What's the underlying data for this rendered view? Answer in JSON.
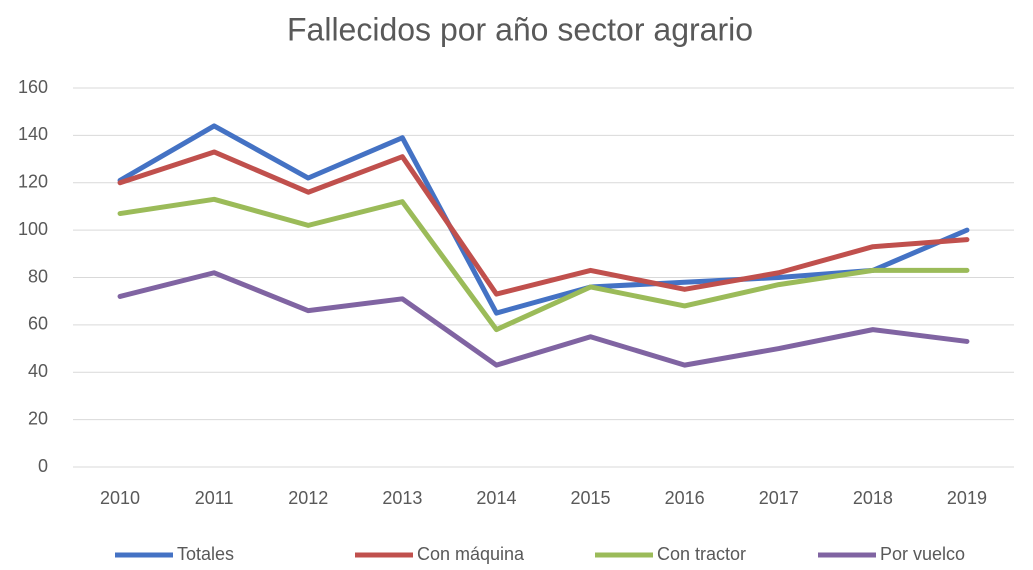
{
  "chart_data": {
    "type": "line",
    "title": "Fallecidos por año sector agrario",
    "categories": [
      "2010",
      "2011",
      "2012",
      "2013",
      "2014",
      "2015",
      "2016",
      "2017",
      "2018",
      "2019"
    ],
    "series": [
      {
        "name": "Totales",
        "color": "#4472c4",
        "values": [
          121,
          144,
          122,
          139,
          65,
          76,
          78,
          80,
          83,
          100
        ]
      },
      {
        "name": "Con máquina",
        "color": "#c0504d",
        "values": [
          120,
          133,
          116,
          131,
          73,
          83,
          75,
          82,
          93,
          96
        ]
      },
      {
        "name": "Con tractor",
        "color": "#9bbb59",
        "values": [
          107,
          113,
          102,
          112,
          58,
          76,
          68,
          77,
          83,
          83
        ]
      },
      {
        "name": "Por vuelco",
        "color": "#8064a2",
        "values": [
          72,
          82,
          66,
          71,
          43,
          55,
          43,
          50,
          58,
          53
        ]
      }
    ],
    "ylim": [
      0,
      160
    ],
    "yticks": [
      0,
      20,
      40,
      60,
      80,
      100,
      120,
      140,
      160
    ],
    "grid": true,
    "legend": "bottom"
  }
}
